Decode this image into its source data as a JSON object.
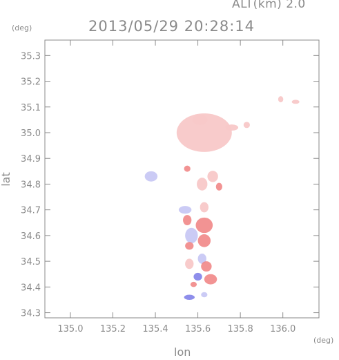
{
  "header": {
    "altitude_label": "ALT(km) 2.0",
    "datetime_label": "2013/05/29 20:28:14"
  },
  "axes": {
    "x_unit": "(deg)",
    "y_unit": "(deg)",
    "x_label": "lon",
    "y_label": "lat"
  },
  "chart_data": {
    "type": "heatmap",
    "xlabel": "lon",
    "ylabel": "lat",
    "xlim": [
      134.88,
      136.17
    ],
    "ylim": [
      34.28,
      35.36
    ],
    "x_ticks": [
      135.0,
      135.2,
      135.4,
      135.6,
      135.8,
      136.0
    ],
    "x_tick_labels": [
      "135.0",
      "135.2",
      "135.4",
      "135.6",
      "135.8",
      "136.0"
    ],
    "y_ticks": [
      34.3,
      34.4,
      34.5,
      34.6,
      34.7,
      34.8,
      34.9,
      35.0,
      35.1,
      35.2,
      35.3
    ],
    "y_tick_labels": [
      "34.3",
      "34.4",
      "34.5",
      "34.6",
      "34.7",
      "34.8",
      "34.9",
      "35.0",
      "35.1",
      "35.2",
      "35.3"
    ],
    "grid": false,
    "colormap": {
      "positive": "#f08080",
      "weak_positive": "#f8c8c8",
      "negative": "#7a7ae8",
      "weak_negative": "#c8c8f4"
    },
    "regions": [
      {
        "lon": 135.63,
        "lat": 35.0,
        "rx": 0.13,
        "ry": 0.075,
        "sign": "weak_positive"
      },
      {
        "lon": 135.61,
        "lat": 35.05,
        "rx": 0.035,
        "ry": 0.02,
        "sign": "weak_positive"
      },
      {
        "lon": 135.76,
        "lat": 35.02,
        "rx": 0.03,
        "ry": 0.012,
        "sign": "weak_positive"
      },
      {
        "lon": 135.83,
        "lat": 35.03,
        "rx": 0.015,
        "ry": 0.012,
        "sign": "weak_positive"
      },
      {
        "lon": 135.99,
        "lat": 35.13,
        "rx": 0.012,
        "ry": 0.012,
        "sign": "weak_positive"
      },
      {
        "lon": 136.06,
        "lat": 35.12,
        "rx": 0.018,
        "ry": 0.008,
        "sign": "weak_positive"
      },
      {
        "lon": 135.38,
        "lat": 34.83,
        "rx": 0.03,
        "ry": 0.02,
        "sign": "weak_negative"
      },
      {
        "lon": 135.55,
        "lat": 34.86,
        "rx": 0.015,
        "ry": 0.012,
        "sign": "positive"
      },
      {
        "lon": 135.67,
        "lat": 34.83,
        "rx": 0.025,
        "ry": 0.022,
        "sign": "weak_positive"
      },
      {
        "lon": 135.62,
        "lat": 34.8,
        "rx": 0.025,
        "ry": 0.025,
        "sign": "weak_positive"
      },
      {
        "lon": 135.7,
        "lat": 34.79,
        "rx": 0.015,
        "ry": 0.015,
        "sign": "positive"
      },
      {
        "lon": 135.54,
        "lat": 34.7,
        "rx": 0.03,
        "ry": 0.015,
        "sign": "weak_negative"
      },
      {
        "lon": 135.63,
        "lat": 34.71,
        "rx": 0.02,
        "ry": 0.02,
        "sign": "weak_positive"
      },
      {
        "lon": 135.55,
        "lat": 34.66,
        "rx": 0.02,
        "ry": 0.02,
        "sign": "positive"
      },
      {
        "lon": 135.63,
        "lat": 34.64,
        "rx": 0.04,
        "ry": 0.03,
        "sign": "positive"
      },
      {
        "lon": 135.57,
        "lat": 34.6,
        "rx": 0.03,
        "ry": 0.03,
        "sign": "weak_negative"
      },
      {
        "lon": 135.63,
        "lat": 34.58,
        "rx": 0.03,
        "ry": 0.025,
        "sign": "positive"
      },
      {
        "lon": 135.56,
        "lat": 34.56,
        "rx": 0.02,
        "ry": 0.015,
        "sign": "positive"
      },
      {
        "lon": 135.62,
        "lat": 34.51,
        "rx": 0.02,
        "ry": 0.02,
        "sign": "weak_negative"
      },
      {
        "lon": 135.56,
        "lat": 34.49,
        "rx": 0.02,
        "ry": 0.02,
        "sign": "weak_positive"
      },
      {
        "lon": 135.64,
        "lat": 34.48,
        "rx": 0.025,
        "ry": 0.02,
        "sign": "positive"
      },
      {
        "lon": 135.6,
        "lat": 34.44,
        "rx": 0.02,
        "ry": 0.015,
        "sign": "negative"
      },
      {
        "lon": 135.66,
        "lat": 34.43,
        "rx": 0.03,
        "ry": 0.02,
        "sign": "positive"
      },
      {
        "lon": 135.58,
        "lat": 34.41,
        "rx": 0.015,
        "ry": 0.01,
        "sign": "positive"
      },
      {
        "lon": 135.56,
        "lat": 34.36,
        "rx": 0.025,
        "ry": 0.01,
        "sign": "negative"
      },
      {
        "lon": 135.63,
        "lat": 34.37,
        "rx": 0.015,
        "ry": 0.01,
        "sign": "weak_negative"
      }
    ]
  }
}
